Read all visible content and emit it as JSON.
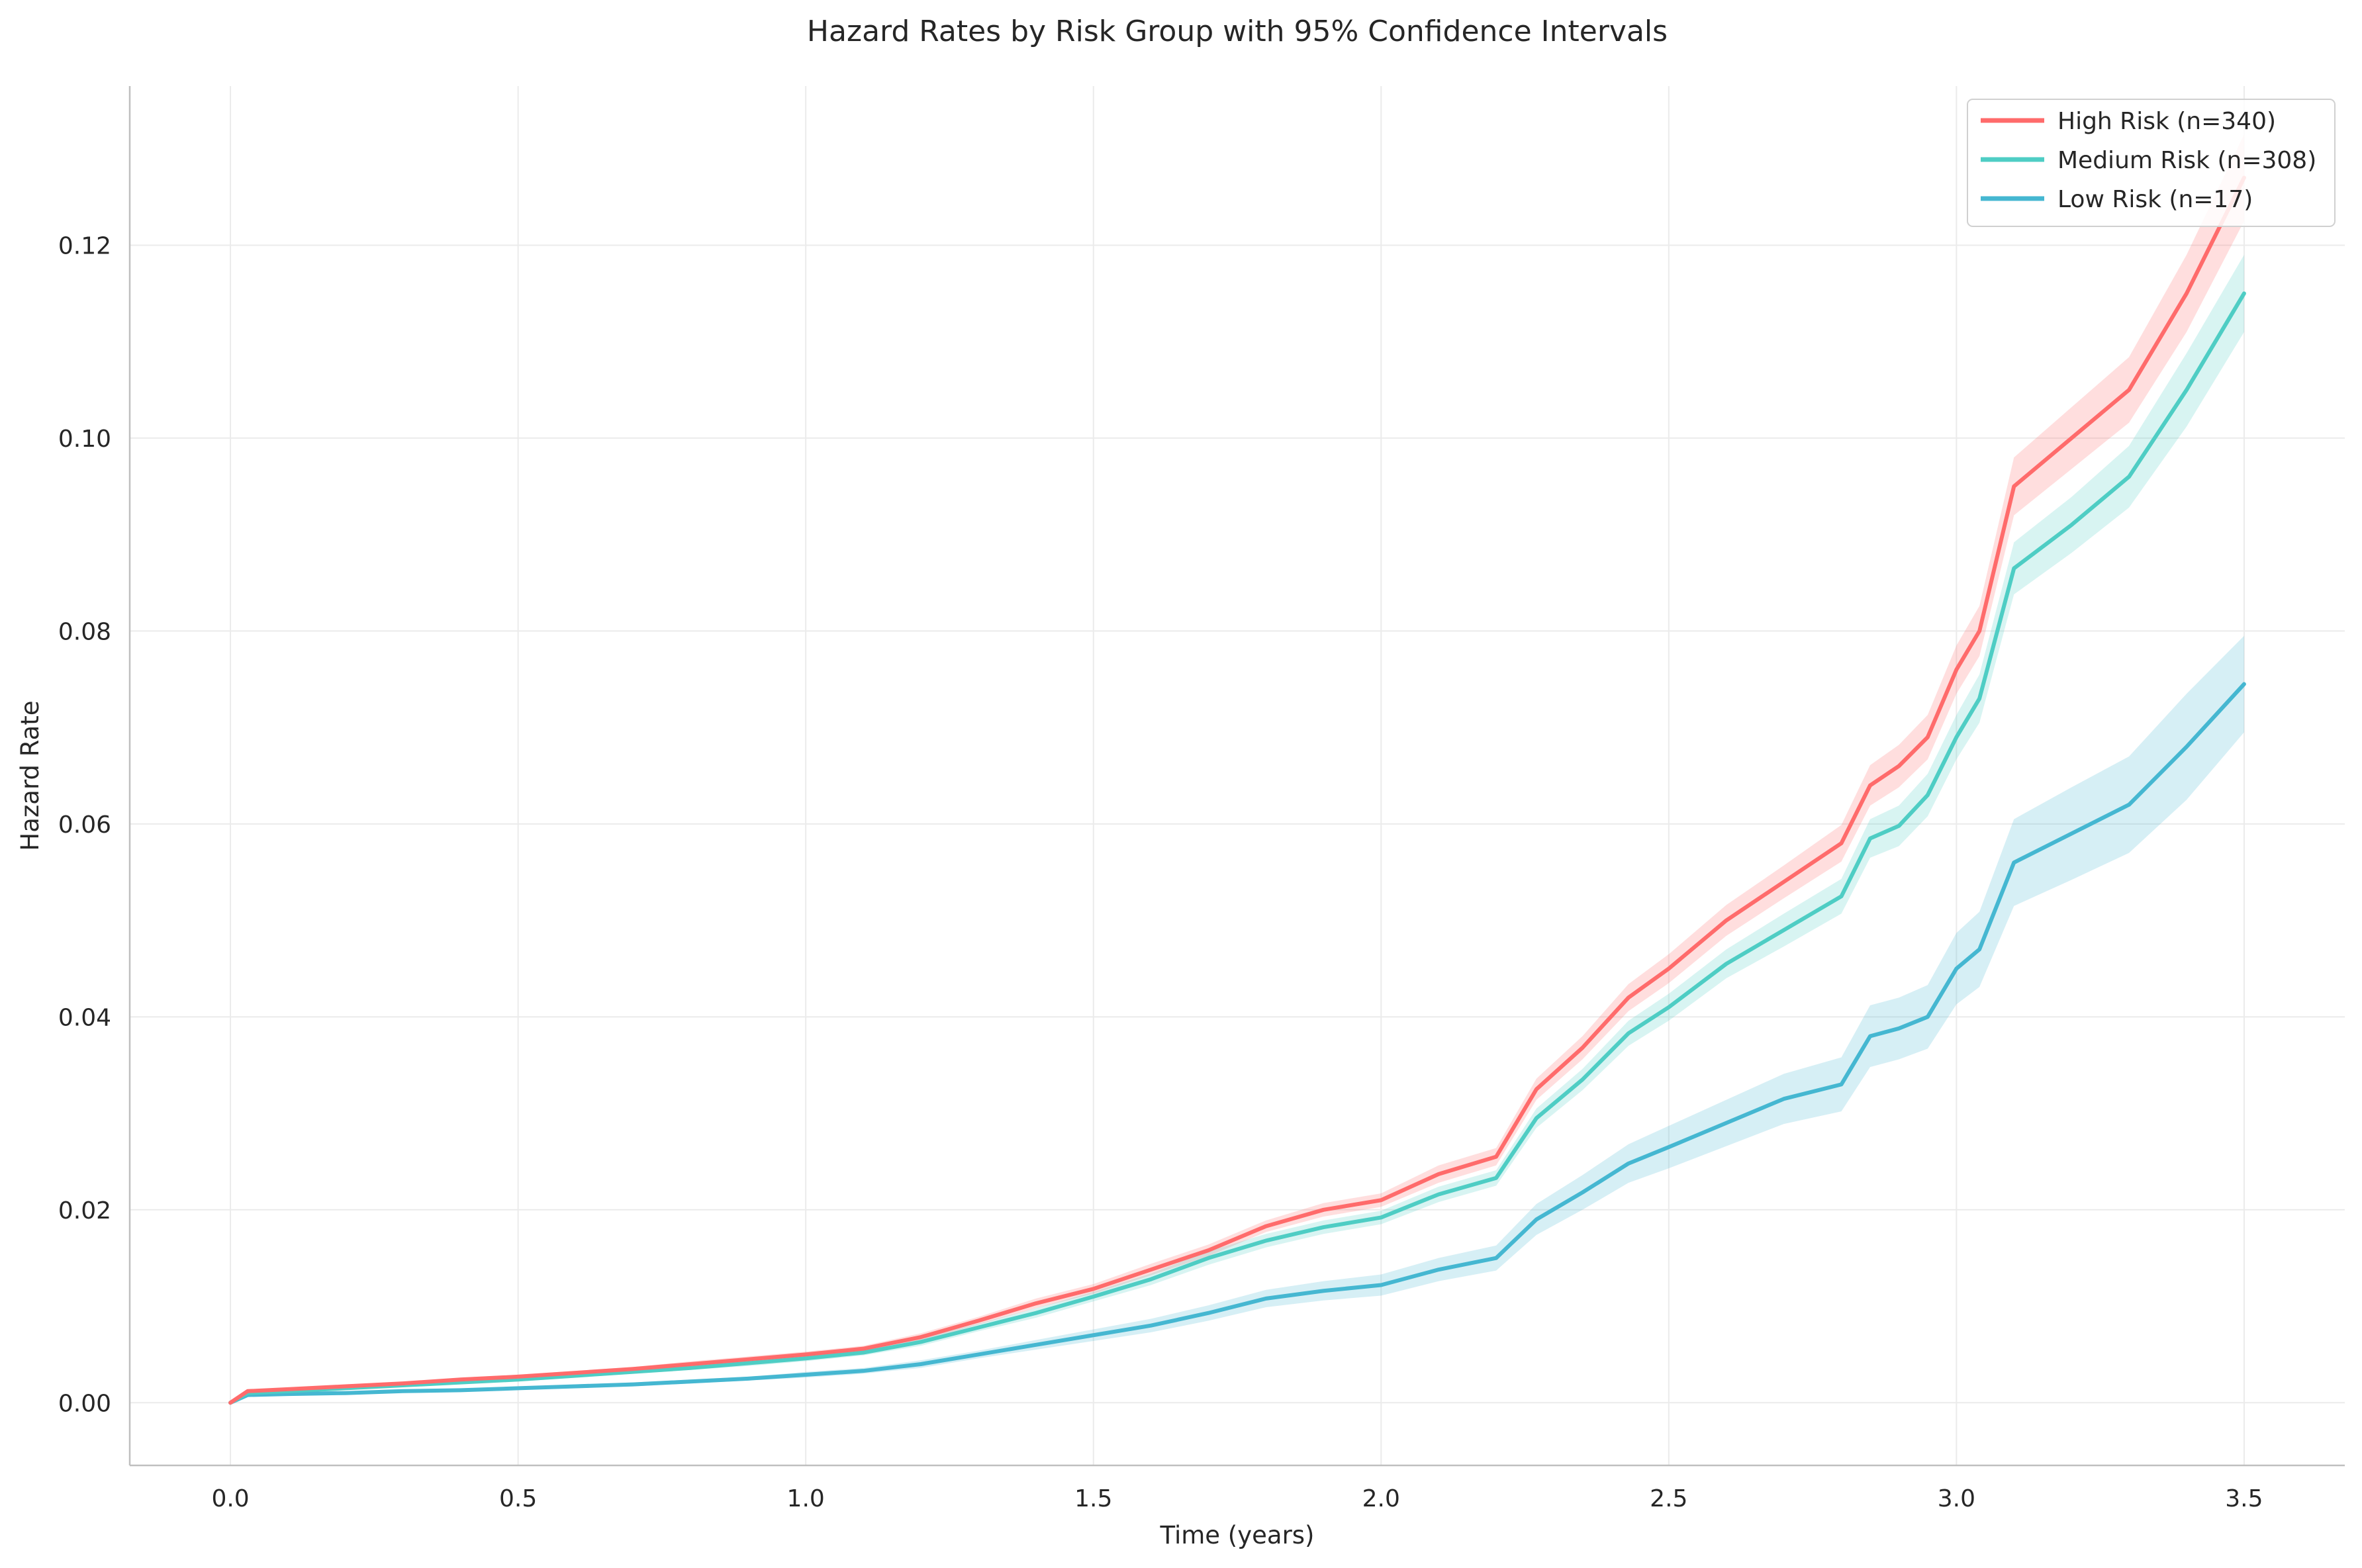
{
  "chart_data": {
    "type": "line",
    "title": "Hazard Rates by Risk Group with 95% Confidence Intervals",
    "xlabel": "Time (years)",
    "ylabel": "Hazard Rate",
    "xlim": [
      -0.175,
      3.675
    ],
    "ylim": [
      -0.0065,
      0.1365
    ],
    "xticks": [
      0.0,
      0.5,
      1.0,
      1.5,
      2.0,
      2.5,
      3.0,
      3.5
    ],
    "xtick_labels": [
      "0.0",
      "0.5",
      "1.0",
      "1.5",
      "2.0",
      "2.5",
      "3.0",
      "3.5"
    ],
    "yticks": [
      0.0,
      0.02,
      0.04,
      0.06,
      0.08,
      0.1,
      0.12
    ],
    "ytick_labels": [
      "0.00",
      "0.02",
      "0.04",
      "0.06",
      "0.08",
      "0.10",
      "0.12"
    ],
    "grid": true,
    "legend_position": "top-right",
    "x": [
      0.0,
      0.03,
      0.1,
      0.2,
      0.3,
      0.4,
      0.5,
      0.6,
      0.7,
      0.8,
      0.9,
      1.0,
      1.1,
      1.2,
      1.3,
      1.4,
      1.5,
      1.6,
      1.7,
      1.8,
      1.9,
      2.0,
      2.1,
      2.2,
      2.27,
      2.35,
      2.43,
      2.5,
      2.6,
      2.7,
      2.8,
      2.85,
      2.9,
      2.95,
      3.0,
      3.04,
      3.1,
      3.2,
      3.3,
      3.4,
      3.5
    ],
    "series": [
      {
        "name": "High Risk (n=340)",
        "color": "#ff6b6b",
        "values": [
          0.0,
          0.0012,
          0.0014,
          0.0017,
          0.002,
          0.0024,
          0.0027,
          0.0031,
          0.0035,
          0.004,
          0.0045,
          0.005,
          0.0056,
          0.0068,
          0.0085,
          0.0103,
          0.0118,
          0.0138,
          0.0158,
          0.0183,
          0.02,
          0.021,
          0.0237,
          0.0255,
          0.0325,
          0.0368,
          0.042,
          0.045,
          0.05,
          0.054,
          0.058,
          0.064,
          0.066,
          0.069,
          0.076,
          0.08,
          0.095,
          0.1,
          0.105,
          0.115,
          0.127
        ],
        "ci_lower": [
          0.0,
          0.0011,
          0.0013,
          0.0016,
          0.0019,
          0.0022,
          0.0025,
          0.0029,
          0.0033,
          0.0037,
          0.0042,
          0.0047,
          0.0053,
          0.0064,
          0.0081,
          0.0098,
          0.0113,
          0.0132,
          0.0152,
          0.0177,
          0.0193,
          0.0203,
          0.0228,
          0.0246,
          0.0314,
          0.0356,
          0.0406,
          0.0435,
          0.0484,
          0.0523,
          0.0561,
          0.0619,
          0.0638,
          0.0667,
          0.0735,
          0.0774,
          0.092,
          0.0968,
          0.1016,
          0.111,
          0.1225
        ],
        "ci_upper": [
          0.0,
          0.0013,
          0.0015,
          0.0018,
          0.0021,
          0.0026,
          0.0029,
          0.0033,
          0.0037,
          0.0043,
          0.0048,
          0.0053,
          0.0059,
          0.0072,
          0.0089,
          0.0108,
          0.0123,
          0.0144,
          0.0164,
          0.0189,
          0.0207,
          0.0217,
          0.0246,
          0.0264,
          0.0336,
          0.038,
          0.0434,
          0.0465,
          0.0516,
          0.0557,
          0.0599,
          0.0661,
          0.0682,
          0.0713,
          0.0785,
          0.0826,
          0.098,
          0.1032,
          0.1084,
          0.119,
          0.1315
        ]
      },
      {
        "name": "Medium Risk (n=308)",
        "color": "#4ecdc4",
        "values": [
          0.0,
          0.001,
          0.0012,
          0.0015,
          0.0018,
          0.0021,
          0.0024,
          0.0028,
          0.0032,
          0.0036,
          0.0041,
          0.0046,
          0.0052,
          0.0063,
          0.0078,
          0.0093,
          0.011,
          0.0128,
          0.015,
          0.0168,
          0.0182,
          0.0192,
          0.0216,
          0.0233,
          0.0295,
          0.0335,
          0.0383,
          0.041,
          0.0455,
          0.049,
          0.0525,
          0.0585,
          0.0598,
          0.063,
          0.069,
          0.073,
          0.0865,
          0.091,
          0.096,
          0.105,
          0.115
        ],
        "ci_lower": [
          0.0,
          0.0009,
          0.0011,
          0.0014,
          0.0017,
          0.002,
          0.0022,
          0.0026,
          0.003,
          0.0034,
          0.0038,
          0.0043,
          0.0049,
          0.0059,
          0.0074,
          0.0088,
          0.0105,
          0.0122,
          0.0143,
          0.0161,
          0.0175,
          0.0185,
          0.0208,
          0.0225,
          0.0285,
          0.0324,
          0.037,
          0.0396,
          0.044,
          0.0473,
          0.0507,
          0.0565,
          0.0577,
          0.0608,
          0.0667,
          0.0705,
          0.0838,
          0.0881,
          0.0928,
          0.1012,
          0.111
        ],
        "ci_upper": [
          0.0,
          0.0011,
          0.0013,
          0.0016,
          0.0019,
          0.0022,
          0.0026,
          0.003,
          0.0034,
          0.0038,
          0.0044,
          0.0049,
          0.0055,
          0.0067,
          0.0082,
          0.0098,
          0.0115,
          0.0134,
          0.0157,
          0.0175,
          0.0189,
          0.0199,
          0.0224,
          0.0241,
          0.0305,
          0.0346,
          0.0396,
          0.0424,
          0.047,
          0.0507,
          0.0543,
          0.0605,
          0.0619,
          0.0652,
          0.0713,
          0.0755,
          0.0892,
          0.0939,
          0.0992,
          0.1088,
          0.119
        ]
      },
      {
        "name": "Low Risk (n=17)",
        "color": "#45b7d1",
        "values": [
          0.0,
          0.0008,
          0.0009,
          0.001,
          0.0012,
          0.0013,
          0.0015,
          0.0017,
          0.0019,
          0.0022,
          0.0025,
          0.0029,
          0.0033,
          0.004,
          0.005,
          0.006,
          0.007,
          0.008,
          0.0093,
          0.0108,
          0.0116,
          0.0122,
          0.0138,
          0.015,
          0.019,
          0.0218,
          0.0248,
          0.0265,
          0.029,
          0.0315,
          0.033,
          0.038,
          0.0388,
          0.04,
          0.045,
          0.047,
          0.056,
          0.059,
          0.062,
          0.068,
          0.0745
        ],
        "ci_lower": [
          0.0,
          0.0007,
          0.0008,
          0.0009,
          0.0011,
          0.0012,
          0.0014,
          0.0015,
          0.0017,
          0.002,
          0.0023,
          0.0026,
          0.003,
          0.0036,
          0.0046,
          0.0055,
          0.0064,
          0.0073,
          0.0085,
          0.0099,
          0.0106,
          0.0111,
          0.0126,
          0.0137,
          0.0174,
          0.02,
          0.0228,
          0.0243,
          0.0266,
          0.0289,
          0.0302,
          0.0348,
          0.0356,
          0.0367,
          0.0413,
          0.0431,
          0.0515,
          0.0542,
          0.057,
          0.0625,
          0.0695
        ],
        "ci_upper": [
          0.0,
          0.0009,
          0.001,
          0.0011,
          0.0013,
          0.0014,
          0.0016,
          0.0019,
          0.0021,
          0.0024,
          0.0027,
          0.0032,
          0.0036,
          0.0044,
          0.0054,
          0.0065,
          0.0076,
          0.0087,
          0.0101,
          0.0117,
          0.0126,
          0.0133,
          0.015,
          0.0163,
          0.0206,
          0.0236,
          0.0268,
          0.0287,
          0.0314,
          0.0341,
          0.0358,
          0.0412,
          0.042,
          0.0433,
          0.0487,
          0.0509,
          0.0605,
          0.0638,
          0.067,
          0.0735,
          0.0795
        ]
      }
    ]
  }
}
